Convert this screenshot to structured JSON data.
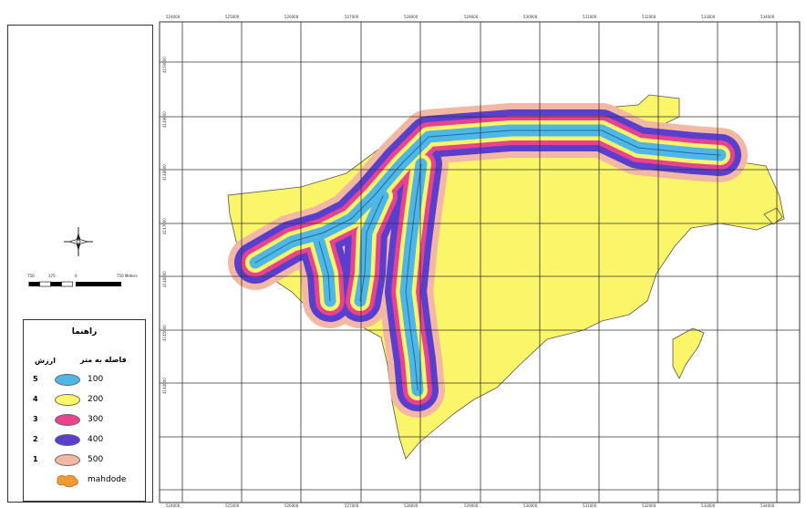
{
  "legend": {
    "title": "راهنما",
    "col_value": "ارزش",
    "col_distance": "فاصله به متر",
    "items": [
      {
        "value": "5",
        "label": "100",
        "color": "#4fb7e6"
      },
      {
        "value": "4",
        "label": "200",
        "color": "#fdf86a"
      },
      {
        "value": "3",
        "label": "300",
        "color": "#e8448e"
      },
      {
        "value": "2",
        "label": "400",
        "color": "#5a3fcf"
      },
      {
        "value": "1",
        "label": "500",
        "color": "#f2b8a4"
      },
      {
        "value": "",
        "label": "mahdode",
        "color": "#ee9a35"
      }
    ]
  },
  "scalebar": {
    "labels": [
      "750",
      "375",
      "0",
      "750 Meters"
    ]
  },
  "grid": {
    "x_ticks": [
      "524000",
      "525000",
      "526000",
      "527000",
      "528000",
      "529000",
      "530000",
      "531000",
      "532000",
      "533000",
      "534000"
    ],
    "y_ticks": [
      "4150000",
      "4149000",
      "4148000",
      "4147000",
      "4146000",
      "4145000",
      "4144000"
    ]
  },
  "north_arrow": {
    "icon": "north-arrow-icon"
  }
}
